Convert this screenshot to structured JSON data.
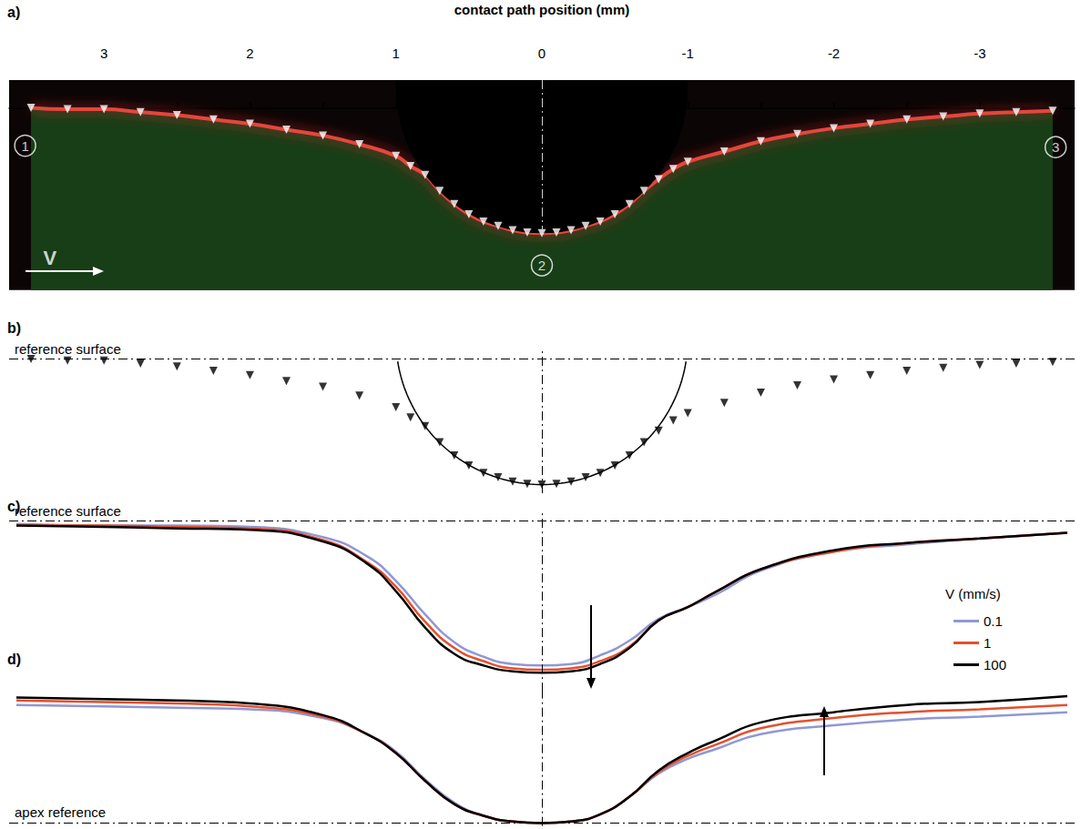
{
  "chart_data": [
    {
      "title": "a)",
      "type": "scatter",
      "xlabel": "contact path position (mm)",
      "xlim": [
        3.65,
        -3.65
      ],
      "xticks": [
        3,
        2,
        1,
        0,
        -1,
        -2,
        -3
      ],
      "xticks_minor": [
        3.5,
        2.5,
        1.5,
        0.5,
        -0.5,
        -1.5,
        -2.5,
        -3.5
      ],
      "ylim": [
        -1.25,
        0.19
      ],
      "tick_labels": "x",
      "x": [
        3.5,
        3.25,
        3,
        2.75,
        2.5,
        2.25,
        2,
        1.75,
        1.5,
        1.25,
        1,
        0.9,
        0.8,
        0.7,
        0.6,
        0.5,
        0.4,
        0.3,
        0.2,
        0.1,
        0,
        -0.1,
        -0.2,
        -0.3,
        -0.4,
        -0.5,
        -0.6,
        -0.7,
        -0.8,
        -0.9,
        -1,
        -1.25,
        -1.5,
        -1.75,
        -2,
        -2.25,
        -2.5,
        -2.75,
        -3,
        -3.25,
        -3.5
      ],
      "series": [
        {
          "color": "#ffffff",
          "marker": "triangle_down",
          "values": [
            0,
            -0.01,
            -0.01,
            -0.03,
            -0.05,
            -0.08,
            -0.11,
            -0.15,
            -0.19,
            -0.25,
            -0.33,
            -0.4,
            -0.46,
            -0.57,
            -0.66,
            -0.73,
            -0.78,
            -0.81,
            -0.84,
            -0.855,
            -0.86,
            -0.855,
            -0.84,
            -0.81,
            -0.78,
            -0.73,
            -0.66,
            -0.57,
            -0.49,
            -0.42,
            -0.37,
            -0.3,
            -0.23,
            -0.18,
            -0.14,
            -0.11,
            -0.08,
            -0.06,
            -0.04,
            -0.03,
            -0.02
          ]
        }
      ],
      "indenter": {
        "center": [
          0,
          0.14
        ],
        "radius": 1.0
      },
      "annotations": [
        {
          "text": "1",
          "x": 3.54,
          "y": -0.26
        },
        {
          "text": "2",
          "x": 0,
          "y": -1.08
        },
        {
          "text": "3",
          "x": -3.52,
          "y": -0.27
        },
        {
          "text": "V",
          "x": 3.37,
          "y": -1.03
        }
      ],
      "reference_lines": [
        {
          "axis": "x",
          "value": 0
        }
      ]
    },
    {
      "title": "b)",
      "type": "scatter",
      "xlim": [
        3.65,
        -3.65
      ],
      "ylim": [
        -0.92,
        0.06
      ],
      "tick_labels": false,
      "x": [
        3.5,
        3.25,
        3,
        2.75,
        2.5,
        2.25,
        2,
        1.75,
        1.5,
        1.25,
        1,
        0.9,
        0.8,
        0.7,
        0.6,
        0.5,
        0.4,
        0.3,
        0.2,
        0.1,
        0,
        -0.1,
        -0.2,
        -0.3,
        -0.4,
        -0.5,
        -0.6,
        -0.7,
        -0.8,
        -0.9,
        -1,
        -1.25,
        -1.5,
        -1.75,
        -2,
        -2.25,
        -2.5,
        -2.75,
        -3,
        -3.25,
        -3.5
      ],
      "series": [
        {
          "color": "#000000",
          "marker": "triangle_down",
          "values": [
            0,
            -0.01,
            -0.01,
            -0.03,
            -0.05,
            -0.08,
            -0.11,
            -0.15,
            -0.19,
            -0.25,
            -0.33,
            -0.4,
            -0.46,
            -0.57,
            -0.66,
            -0.73,
            -0.78,
            -0.81,
            -0.84,
            -0.855,
            -0.86,
            -0.855,
            -0.84,
            -0.81,
            -0.78,
            -0.73,
            -0.66,
            -0.57,
            -0.49,
            -0.42,
            -0.37,
            -0.3,
            -0.23,
            -0.18,
            -0.14,
            -0.11,
            -0.08,
            -0.06,
            -0.04,
            -0.03,
            -0.02
          ]
        }
      ],
      "indenter": {
        "center": [
          0,
          0.14
        ],
        "radius": 1.0
      },
      "reference_lines": [
        {
          "axis": "x",
          "value": 0
        },
        {
          "axis": "y",
          "value": 0,
          "label": "reference surface"
        }
      ]
    },
    {
      "title": "c)",
      "type": "line",
      "xlim": [
        3.65,
        -3.65
      ],
      "ylim": [
        -1.17,
        0.06
      ],
      "tick_labels": false,
      "legend": "right",
      "legend_title": "V (mm/s)",
      "x": [
        3.6,
        3,
        2.5,
        2,
        1.5,
        1.2,
        1,
        0.8,
        0.6,
        0.4,
        0.2,
        0,
        -0.2,
        -0.4,
        -0.6,
        -0.8,
        -1,
        -1.2,
        -1.5,
        -2,
        -2.5,
        -3,
        -3.6
      ],
      "series": [
        {
          "name": "0.1",
          "color": "#8f98d4",
          "values": [
            -0.02,
            -0.03,
            -0.03,
            -0.04,
            -0.11,
            -0.24,
            -0.41,
            -0.64,
            -0.83,
            -0.93,
            -0.98,
            -0.99,
            -0.98,
            -0.92,
            -0.82,
            -0.67,
            -0.59,
            -0.5,
            -0.34,
            -0.21,
            -0.16,
            -0.12,
            -0.08
          ]
        },
        {
          "name": "1",
          "color": "#e5502e",
          "values": [
            -0.03,
            -0.03,
            -0.04,
            -0.05,
            -0.13,
            -0.28,
            -0.45,
            -0.69,
            -0.87,
            -0.96,
            -1.01,
            -1.02,
            -1.01,
            -0.96,
            -0.86,
            -0.68,
            -0.59,
            -0.48,
            -0.33,
            -0.21,
            -0.15,
            -0.12,
            -0.08
          ]
        },
        {
          "name": "100",
          "color": "#000000",
          "values": [
            -0.03,
            -0.04,
            -0.05,
            -0.06,
            -0.14,
            -0.29,
            -0.48,
            -0.73,
            -0.91,
            -0.99,
            -1.03,
            -1.04,
            -1.03,
            -0.98,
            -0.87,
            -0.68,
            -0.59,
            -0.48,
            -0.33,
            -0.2,
            -0.15,
            -0.12,
            -0.08
          ]
        }
      ],
      "reference_lines": [
        {
          "axis": "x",
          "value": 0
        },
        {
          "axis": "y",
          "value": 0,
          "label": "reference surface"
        }
      ]
    },
    {
      "title": "d)",
      "type": "line",
      "xlim": [
        3.65,
        -3.65
      ],
      "ylim": [
        -0.02,
        0.92
      ],
      "tick_labels": false,
      "x": [
        3.6,
        3,
        2.5,
        2,
        1.5,
        1.2,
        1,
        0.8,
        0.6,
        0.4,
        0.2,
        0,
        -0.2,
        -0.4,
        -0.6,
        -0.8,
        -1,
        -1.2,
        -1.5,
        -2,
        -2.5,
        -3,
        -3.6
      ],
      "series": [
        {
          "name": "0.1",
          "color": "#8f98d4",
          "values": [
            0.81,
            0.8,
            0.79,
            0.78,
            0.72,
            0.61,
            0.49,
            0.3,
            0.14,
            0.05,
            0.01,
            0,
            0.01,
            0.06,
            0.18,
            0.34,
            0.44,
            0.51,
            0.61,
            0.67,
            0.71,
            0.73,
            0.76
          ]
        },
        {
          "name": "1",
          "color": "#e5502e",
          "values": [
            0.84,
            0.83,
            0.82,
            0.8,
            0.73,
            0.61,
            0.48,
            0.29,
            0.13,
            0.05,
            0.01,
            0,
            0.01,
            0.06,
            0.18,
            0.35,
            0.46,
            0.54,
            0.65,
            0.72,
            0.76,
            0.78,
            0.81
          ]
        },
        {
          "name": "100",
          "color": "#000000",
          "values": [
            0.86,
            0.85,
            0.84,
            0.82,
            0.74,
            0.61,
            0.48,
            0.29,
            0.13,
            0.05,
            0.01,
            0,
            0.01,
            0.06,
            0.18,
            0.36,
            0.48,
            0.57,
            0.69,
            0.76,
            0.81,
            0.83,
            0.87
          ]
        }
      ],
      "reference_lines": [
        {
          "axis": "x",
          "value": 0
        },
        {
          "axis": "y",
          "value": 0,
          "label": "apex reference"
        }
      ]
    }
  ]
}
